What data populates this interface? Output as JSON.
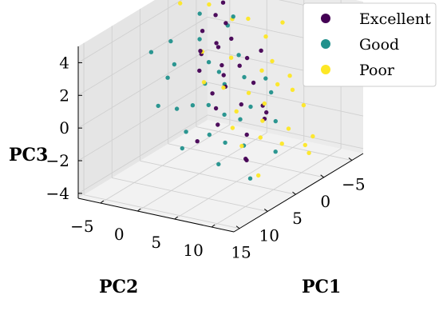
{
  "chart_data": {
    "type": "scatter",
    "projection": "3d",
    "title": "",
    "xlabel": "PC1",
    "ylabel": "PC2",
    "zlabel": "PC3",
    "xlim": [
      -7,
      16
    ],
    "ylim": [
      -8,
      13
    ],
    "zlim": [
      -4.3,
      5
    ],
    "xticks": [
      -5,
      0,
      5,
      10,
      15
    ],
    "yticks": [
      -5,
      0,
      5,
      10
    ],
    "zticks": [
      -4,
      -2,
      0,
      2,
      4
    ],
    "grid": true,
    "legend_position": "top-right",
    "series": [
      {
        "name": "Excellent",
        "color": "#440154",
        "points": [
          [
            -4.5,
            -4.0,
            3.8
          ],
          [
            -3.0,
            -2.5,
            3.0
          ],
          [
            -2.0,
            -1.0,
            2.4
          ],
          [
            -1.0,
            -2.0,
            2.0
          ],
          [
            0.0,
            -1.5,
            2.5
          ],
          [
            1.0,
            0.0,
            1.5
          ],
          [
            2.0,
            1.0,
            1.2
          ],
          [
            0.5,
            -3.0,
            3.2
          ],
          [
            -3.5,
            0.0,
            1.0
          ],
          [
            3.0,
            2.0,
            0.8
          ],
          [
            -2.0,
            2.0,
            0.0
          ],
          [
            1.5,
            3.0,
            -0.5
          ],
          [
            4.0,
            1.0,
            0.5
          ],
          [
            -1.0,
            4.0,
            -1.0
          ],
          [
            2.5,
            4.5,
            -2.0
          ],
          [
            0.0,
            5.0,
            -1.5
          ],
          [
            6.0,
            3.0,
            0.2
          ],
          [
            -4.0,
            1.5,
            1.5
          ],
          [
            5.0,
            0.0,
            2.0
          ],
          [
            3.5,
            -1.0,
            2.8
          ],
          [
            7.0,
            4.0,
            -0.5
          ],
          [
            1.0,
            6.0,
            -0.8
          ],
          [
            -2.5,
            -3.5,
            3.5
          ],
          [
            4.5,
            6.0,
            -3.0
          ],
          [
            8.0,
            2.0,
            -1.5
          ],
          [
            -1.5,
            0.5,
            1.0
          ],
          [
            2.0,
            -2.0,
            2.2
          ],
          [
            6.0,
            7.0,
            -2.5
          ]
        ]
      },
      {
        "name": "Good",
        "color": "#21918c",
        "points": [
          [
            5.0,
            -6.5,
            2.5
          ],
          [
            -3.0,
            -1.5,
            3.5
          ],
          [
            2.0,
            -1.0,
            1.8
          ],
          [
            4.0,
            0.0,
            1.0
          ],
          [
            -1.0,
            1.5,
            0.5
          ],
          [
            6.0,
            2.0,
            0.3
          ],
          [
            0.5,
            3.5,
            -0.8
          ],
          [
            8.0,
            -2.0,
            2.0
          ],
          [
            3.0,
            4.0,
            -1.0
          ],
          [
            -2.0,
            0.0,
            1.5
          ],
          [
            9.0,
            0.0,
            0.5
          ],
          [
            1.0,
            -3.0,
            2.8
          ],
          [
            7.0,
            5.0,
            -1.5
          ],
          [
            5.0,
            6.0,
            -2.0
          ],
          [
            -3.5,
            2.5,
            0.0
          ],
          [
            10.0,
            2.0,
            -0.5
          ],
          [
            2.5,
            1.5,
            0.8
          ],
          [
            4.5,
            3.0,
            -0.5
          ],
          [
            -1.0,
            -4.5,
            3.8
          ],
          [
            6.5,
            8.0,
            -3.5
          ],
          [
            11.0,
            -1.0,
            1.0
          ],
          [
            0.0,
            6.5,
            -1.5
          ],
          [
            3.5,
            -5.0,
            3.0
          ],
          [
            8.5,
            4.0,
            -0.8
          ],
          [
            1.5,
            0.0,
            1.2
          ],
          [
            -2.5,
            4.0,
            -0.5
          ],
          [
            7.5,
            1.0,
            0.5
          ],
          [
            12.0,
            3.0,
            -1.0
          ],
          [
            5.5,
            -3.0,
            2.2
          ],
          [
            2.0,
            8.0,
            -2.8
          ],
          [
            -4.0,
            -3.0,
            2.6
          ],
          [
            9.5,
            6.0,
            -2.2
          ]
        ]
      },
      {
        "name": "Poor",
        "color": "#fde725",
        "points": [
          [
            -6.0,
            -3.0,
            4.0
          ],
          [
            -5.0,
            -1.0,
            3.0
          ],
          [
            -4.0,
            3.0,
            1.0
          ],
          [
            -3.0,
            8.0,
            -1.0
          ],
          [
            -2.0,
            10.0,
            -2.5
          ],
          [
            0.0,
            11.0,
            -3.0
          ],
          [
            2.0,
            12.0,
            -2.0
          ],
          [
            1.0,
            9.0,
            -1.5
          ],
          [
            3.0,
            7.0,
            -0.8
          ],
          [
            -1.0,
            6.0,
            0.5
          ],
          [
            5.0,
            5.0,
            0.0
          ],
          [
            -5.5,
            1.0,
            2.0
          ],
          [
            0.0,
            0.5,
            1.8
          ],
          [
            2.5,
            -1.5,
            2.5
          ],
          [
            4.0,
            2.5,
            1.0
          ],
          [
            -3.5,
            -2.0,
            3.2
          ],
          [
            6.0,
            9.0,
            -1.0
          ],
          [
            7.0,
            6.0,
            -0.5
          ],
          [
            -4.5,
            5.0,
            0.2
          ],
          [
            1.5,
            4.0,
            0.3
          ],
          [
            3.5,
            10.0,
            -1.8
          ],
          [
            -2.0,
            -4.0,
            4.2
          ],
          [
            0.5,
            -6.0,
            4.6
          ],
          [
            8.0,
            8.0,
            -1.2
          ],
          [
            -1.5,
            3.5,
            1.0
          ],
          [
            5.5,
            1.0,
            1.5
          ],
          [
            -6.5,
            2.5,
            2.8
          ],
          [
            2.0,
            6.5,
            0.0
          ],
          [
            -3.0,
            6.5,
            -0.2
          ],
          [
            9.0,
            11.0,
            -2.5
          ]
        ]
      }
    ]
  }
}
